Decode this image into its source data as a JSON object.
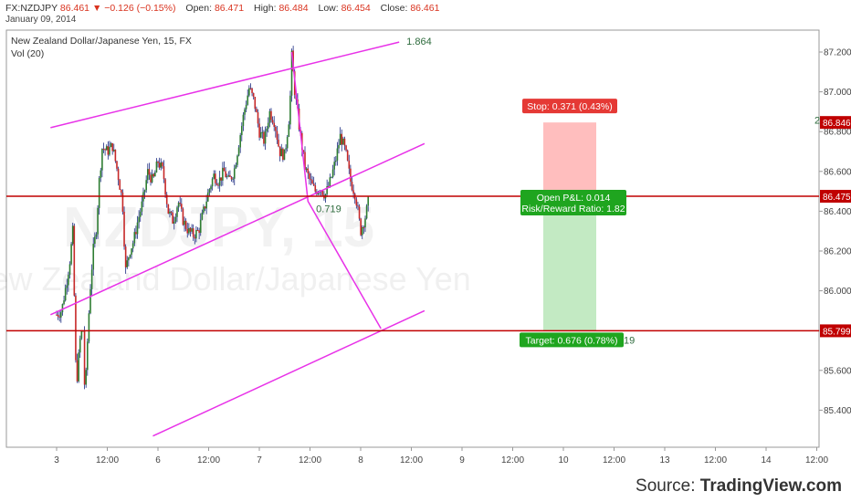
{
  "header": {
    "symbol": "FX:NZDJPY",
    "last": "86.461",
    "change": "▼ −0.126 (−0.15%)",
    "open_label": "Open:",
    "open": "86.471",
    "high_label": "High:",
    "high": "86.484",
    "low_label": "Low:",
    "low": "86.454",
    "close_label": "Close:",
    "close": "86.461",
    "date": "January 09, 2014"
  },
  "source": {
    "prefix": "Source: ",
    "brand": "TradingView.com"
  },
  "colors": {
    "channel": "#e832e8",
    "level": "#c00000",
    "up": "#2e7d32",
    "down": "#c62828",
    "wick": "#1a2a80",
    "stop_zone": "#ffb3b3",
    "target_zone": "#b8e6b8",
    "stop_label_bg": "#e53935",
    "target_label_bg": "#1fa51f",
    "axis_text": "#444444"
  },
  "chart_data": {
    "type": "candlestick",
    "title": "New Zealand Dollar/Japanese Yen, 15, FX",
    "indicator_label": "Vol (20)",
    "watermark": [
      "NZDJPY, 15",
      "New Zealand Dollar/Japanese Yen"
    ],
    "y_ticks": [
      "87.200",
      "87.000",
      "86.800",
      "86.600",
      "86.400",
      "86.200",
      "86.000",
      "85.800",
      "85.600",
      "85.400"
    ],
    "x_ticks": [
      "3",
      "12:00",
      "6",
      "12:00",
      "7",
      "12:00",
      "8",
      "12:00",
      "9",
      "12:00",
      "10",
      "12:00",
      "13",
      "12:00",
      "14",
      "12:00"
    ],
    "ylim": [
      85.27,
      87.31
    ],
    "price_tags": [
      "86.846",
      "86.475",
      "85.799"
    ],
    "horizontal_levels": [
      86.475,
      85.799
    ],
    "trend_labels": [
      "1.864",
      "2",
      "0.719",
      "19"
    ],
    "position": {
      "entry": 86.475,
      "stop": 86.846,
      "target": 85.799,
      "stop_label": "Stop: 0.371 (0.43%)",
      "target_label": "Target: 0.676 (0.78%)",
      "open_pl": "Open P&L: 0.014",
      "risk_reward": "Risk/Reward Ratio: 1.82"
    },
    "price_path": [
      {
        "x": 0.0,
        "y": 85.88
      },
      {
        "x": 0.05,
        "y": 85.9
      },
      {
        "x": 0.1,
        "y": 86.05
      },
      {
        "x": 0.13,
        "y": 86.15
      },
      {
        "x": 0.16,
        "y": 86.3
      },
      {
        "x": 0.19,
        "y": 85.6
      },
      {
        "x": 0.2,
        "y": 85.55
      },
      {
        "x": 0.23,
        "y": 85.75
      },
      {
        "x": 0.26,
        "y": 85.82
      },
      {
        "x": 0.28,
        "y": 85.45
      },
      {
        "x": 0.3,
        "y": 85.7
      },
      {
        "x": 0.33,
        "y": 86.0
      },
      {
        "x": 0.36,
        "y": 86.2
      },
      {
        "x": 0.39,
        "y": 86.3
      },
      {
        "x": 0.42,
        "y": 86.55
      },
      {
        "x": 0.45,
        "y": 86.72
      },
      {
        "x": 0.5,
        "y": 86.7
      },
      {
        "x": 0.55,
        "y": 86.73
      },
      {
        "x": 0.6,
        "y": 86.6
      },
      {
        "x": 0.65,
        "y": 86.45
      },
      {
        "x": 0.68,
        "y": 86.1
      },
      {
        "x": 0.72,
        "y": 86.2
      },
      {
        "x": 0.76,
        "y": 86.25
      },
      {
        "x": 0.8,
        "y": 86.35
      },
      {
        "x": 0.85,
        "y": 86.45
      },
      {
        "x": 0.9,
        "y": 86.6
      },
      {
        "x": 0.95,
        "y": 86.55
      },
      {
        "x": 1.0,
        "y": 86.65
      },
      {
        "x": 1.05,
        "y": 86.6
      },
      {
        "x": 1.1,
        "y": 86.4
      },
      {
        "x": 1.15,
        "y": 86.35
      },
      {
        "x": 1.2,
        "y": 86.45
      },
      {
        "x": 1.25,
        "y": 86.35
      },
      {
        "x": 1.3,
        "y": 86.3
      },
      {
        "x": 1.35,
        "y": 86.28
      },
      {
        "x": 1.4,
        "y": 86.3
      },
      {
        "x": 1.45,
        "y": 86.4
      },
      {
        "x": 1.5,
        "y": 86.5
      },
      {
        "x": 1.55,
        "y": 86.58
      },
      {
        "x": 1.6,
        "y": 86.55
      },
      {
        "x": 1.65,
        "y": 86.6
      },
      {
        "x": 1.7,
        "y": 86.55
      },
      {
        "x": 1.75,
        "y": 86.6
      },
      {
        "x": 1.8,
        "y": 86.75
      },
      {
        "x": 1.85,
        "y": 86.9
      },
      {
        "x": 1.9,
        "y": 87.02
      },
      {
        "x": 1.95,
        "y": 86.95
      },
      {
        "x": 2.0,
        "y": 86.8
      },
      {
        "x": 2.05,
        "y": 86.75
      },
      {
        "x": 2.1,
        "y": 86.9
      },
      {
        "x": 2.15,
        "y": 86.85
      },
      {
        "x": 2.2,
        "y": 86.7
      },
      {
        "x": 2.25,
        "y": 86.68
      },
      {
        "x": 2.3,
        "y": 86.9
      },
      {
        "x": 2.32,
        "y": 87.18
      },
      {
        "x": 2.35,
        "y": 87.0
      },
      {
        "x": 2.4,
        "y": 86.8
      },
      {
        "x": 2.45,
        "y": 86.62
      },
      {
        "x": 2.5,
        "y": 86.55
      },
      {
        "x": 2.55,
        "y": 86.5
      },
      {
        "x": 2.6,
        "y": 86.52
      },
      {
        "x": 2.65,
        "y": 86.48
      },
      {
        "x": 2.7,
        "y": 86.55
      },
      {
        "x": 2.75,
        "y": 86.65
      },
      {
        "x": 2.8,
        "y": 86.78
      },
      {
        "x": 2.85,
        "y": 86.7
      },
      {
        "x": 2.9,
        "y": 86.55
      },
      {
        "x": 2.95,
        "y": 86.48
      },
      {
        "x": 3.0,
        "y": 86.3
      },
      {
        "x": 3.05,
        "y": 86.38
      },
      {
        "x": 3.08,
        "y": 86.46
      }
    ],
    "channel_lines": [
      {
        "x1": -0.06,
        "y1": 86.82,
        "x2": 3.38,
        "y2": 87.25
      },
      {
        "x1": -0.06,
        "y1": 85.88,
        "x2": 3.63,
        "y2": 86.74
      },
      {
        "x1": 0.95,
        "y1": 85.27,
        "x2": 3.63,
        "y2": 85.9
      }
    ],
    "projection_line": [
      {
        "x": 2.32,
        "y": 87.2
      },
      {
        "x": 2.48,
        "y": 86.45
      },
      {
        "x": 3.2,
        "y": 85.81
      }
    ]
  }
}
